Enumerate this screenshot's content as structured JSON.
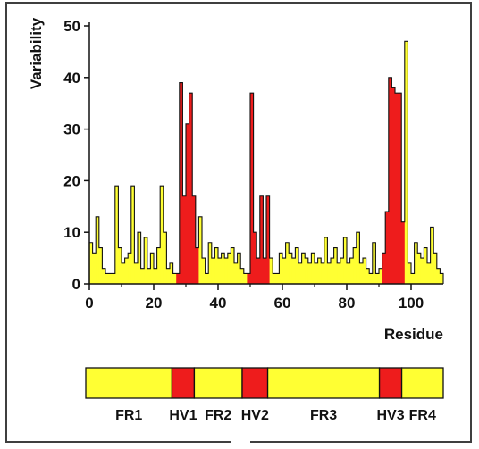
{
  "chart_data": {
    "type": "bar",
    "xlabel": "Residue",
    "ylabel": "Variability",
    "xlim": [
      0,
      110
    ],
    "ylim": [
      0,
      50
    ],
    "x_ticks": [
      "0",
      "20",
      "40",
      "60",
      "80",
      "100"
    ],
    "y_ticks": [
      "0",
      "10",
      "20",
      "30",
      "40",
      "50"
    ],
    "colors": {
      "framework": "#ffff33",
      "hypervariable": "#ee1c1c",
      "outline": "#111111"
    },
    "residues": [
      1,
      2,
      3,
      4,
      5,
      6,
      7,
      8,
      9,
      10,
      11,
      12,
      13,
      14,
      15,
      16,
      17,
      18,
      19,
      20,
      21,
      22,
      23,
      24,
      25,
      26,
      27,
      28,
      29,
      30,
      31,
      32,
      33,
      34,
      35,
      36,
      37,
      38,
      39,
      40,
      41,
      42,
      43,
      44,
      45,
      46,
      47,
      48,
      49,
      50,
      51,
      52,
      53,
      54,
      55,
      56,
      57,
      58,
      59,
      60,
      61,
      62,
      63,
      64,
      65,
      66,
      67,
      68,
      69,
      70,
      71,
      72,
      73,
      74,
      75,
      76,
      77,
      78,
      79,
      80,
      81,
      82,
      83,
      84,
      85,
      86,
      87,
      88,
      89,
      90,
      91,
      92,
      93,
      94,
      95,
      96,
      97,
      98,
      99,
      100,
      101,
      102,
      103,
      104,
      105,
      106,
      107,
      108,
      109,
      110
    ],
    "variability": [
      8,
      6,
      13,
      7,
      3,
      2,
      2,
      2,
      19,
      7,
      4,
      5,
      6,
      19,
      4,
      10,
      3,
      9,
      3,
      6,
      3,
      7,
      19,
      10,
      3,
      4,
      2,
      2,
      39,
      17,
      31,
      37,
      17,
      7,
      13,
      5,
      2,
      8,
      5,
      7,
      5,
      6,
      5,
      6,
      7,
      4,
      6,
      3,
      2,
      2,
      37,
      10,
      5,
      17,
      5,
      17,
      5,
      2,
      2,
      6,
      5,
      8,
      6,
      5,
      7,
      4,
      6,
      5,
      4,
      6,
      4,
      5,
      4,
      9,
      4,
      5,
      7,
      4,
      5,
      9,
      4,
      5,
      7,
      10,
      4,
      5,
      3,
      2,
      8,
      2,
      3,
      6,
      14,
      40,
      38,
      37,
      37,
      12,
      47,
      4,
      2,
      8,
      6,
      5,
      7,
      4,
      11,
      6,
      3,
      2
    ],
    "hypervariable_regions": [
      {
        "name": "HV1",
        "start": 28,
        "end": 34
      },
      {
        "name": "HV2",
        "start": 50,
        "end": 56
      },
      {
        "name": "HV3",
        "start": 92,
        "end": 98
      }
    ],
    "segments": [
      {
        "label": "FR1",
        "kind": "framework",
        "start": 0,
        "end": 27
      },
      {
        "label": "HV1",
        "kind": "hypervariable",
        "start": 27,
        "end": 34
      },
      {
        "label": "FR2",
        "kind": "framework",
        "start": 34,
        "end": 49
      },
      {
        "label": "HV2",
        "kind": "hypervariable",
        "start": 49,
        "end": 57
      },
      {
        "label": "FR3",
        "kind": "framework",
        "start": 57,
        "end": 92
      },
      {
        "label": "HV3",
        "kind": "hypervariable",
        "start": 92,
        "end": 99
      },
      {
        "label": "FR4",
        "kind": "framework",
        "start": 99,
        "end": 112
      }
    ]
  }
}
